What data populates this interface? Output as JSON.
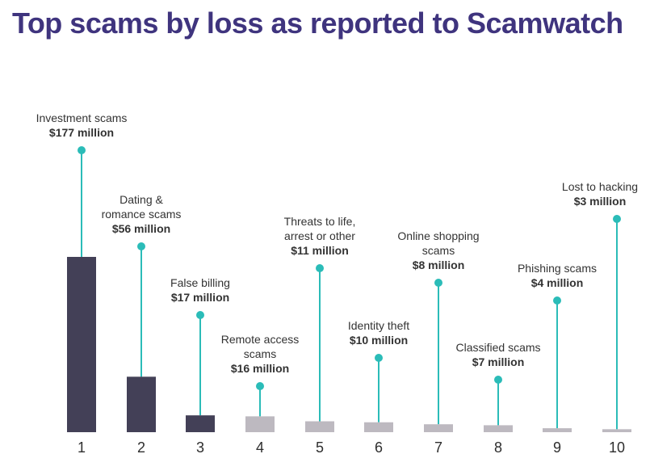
{
  "title": "Top scams by loss as reported to Scamwatch",
  "colors": {
    "title": "#3f347e",
    "bar_dark": "#434057",
    "bar_light": "#bdb9c0",
    "pin": "#2bbcb8",
    "label_text": "#333333",
    "tick_text": "#2e2e2e"
  },
  "chart_data": {
    "type": "bar",
    "title": "Top scams by loss as reported to Scamwatch",
    "xlabel": "",
    "ylabel": "",
    "unit": "million",
    "categories": [
      "1",
      "2",
      "3",
      "4",
      "5",
      "6",
      "7",
      "8",
      "9",
      "10"
    ],
    "values": [
      177,
      56,
      17,
      16,
      11,
      10,
      8,
      7,
      4,
      3
    ],
    "grid": false,
    "legend": "none",
    "annotations": [
      {
        "rank": "1",
        "lines": [
          "Investment scams"
        ],
        "amount": "$177 million"
      },
      {
        "rank": "2",
        "lines": [
          "Dating &",
          "romance scams"
        ],
        "amount": "$56 million"
      },
      {
        "rank": "3",
        "lines": [
          "False billing"
        ],
        "amount": "$17 million"
      },
      {
        "rank": "4",
        "lines": [
          "Remote access",
          "scams"
        ],
        "amount": "$16 million"
      },
      {
        "rank": "5",
        "lines": [
          "Threats to life,",
          "arrest or other"
        ],
        "amount": "$11 million"
      },
      {
        "rank": "6",
        "lines": [
          "Identity theft"
        ],
        "amount": "$10 million"
      },
      {
        "rank": "7",
        "lines": [
          "Online shopping",
          "scams"
        ],
        "amount": "$8 million"
      },
      {
        "rank": "8",
        "lines": [
          "Classified scams"
        ],
        "amount": "$7 million"
      },
      {
        "rank": "9",
        "lines": [
          "Phishing scams"
        ],
        "amount": "$4 million"
      },
      {
        "rank": "10",
        "lines": [
          "Lost to hacking"
        ],
        "amount": "$3 million"
      }
    ]
  }
}
